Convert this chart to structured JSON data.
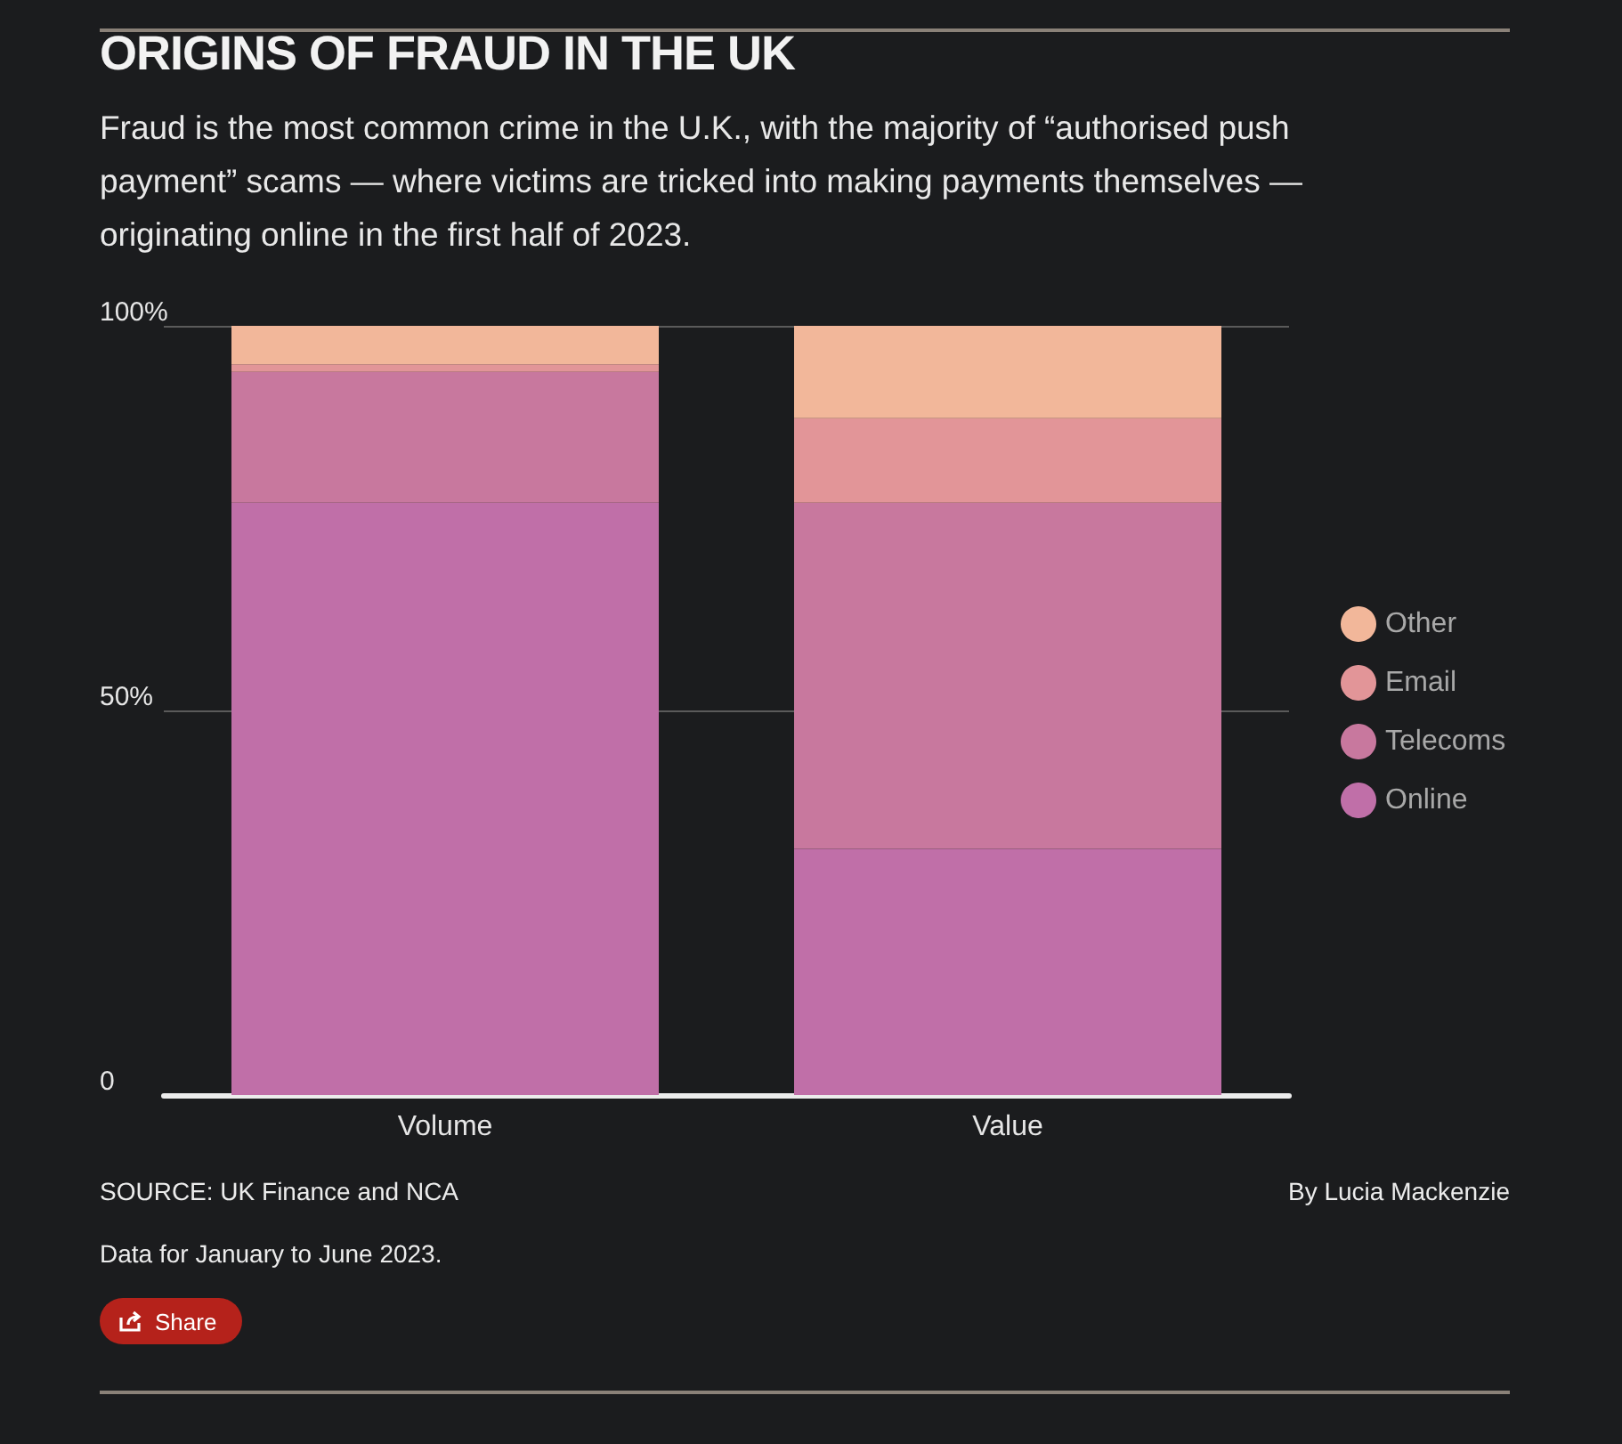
{
  "chart_data": {
    "type": "bar",
    "title": "ORIGINS OF FRAUD IN THE UK",
    "subtitle": "Fraud is the most common crime in the U.K., with the majority of “authorised push payment” scams — where victims are tricked into making payments themselves — originating online in the first half of 2023.",
    "categories": [
      "Volume",
      "Value"
    ],
    "series": [
      {
        "name": "Online",
        "color": "#c06fa8",
        "values": [
          77,
          32
        ]
      },
      {
        "name": "Telecoms",
        "color": "#c8789e",
        "values": [
          17,
          45
        ]
      },
      {
        "name": "Email",
        "color": "#e29598",
        "values": [
          1,
          11
        ]
      },
      {
        "name": "Other",
        "color": "#f2b79a",
        "values": [
          5,
          12
        ]
      }
    ],
    "stacked": true,
    "ylim": [
      0,
      100
    ],
    "yticks": [
      0,
      {
        "value": 50,
        "label": "50%"
      },
      {
        "value": 100,
        "label": "100%"
      }
    ],
    "grid": "y",
    "legend": "right",
    "annotations": [
      "SOURCE: UK Finance and NCA",
      "By Lucia Mackenzie",
      "Data for January to June 2023.",
      "Share"
    ]
  }
}
